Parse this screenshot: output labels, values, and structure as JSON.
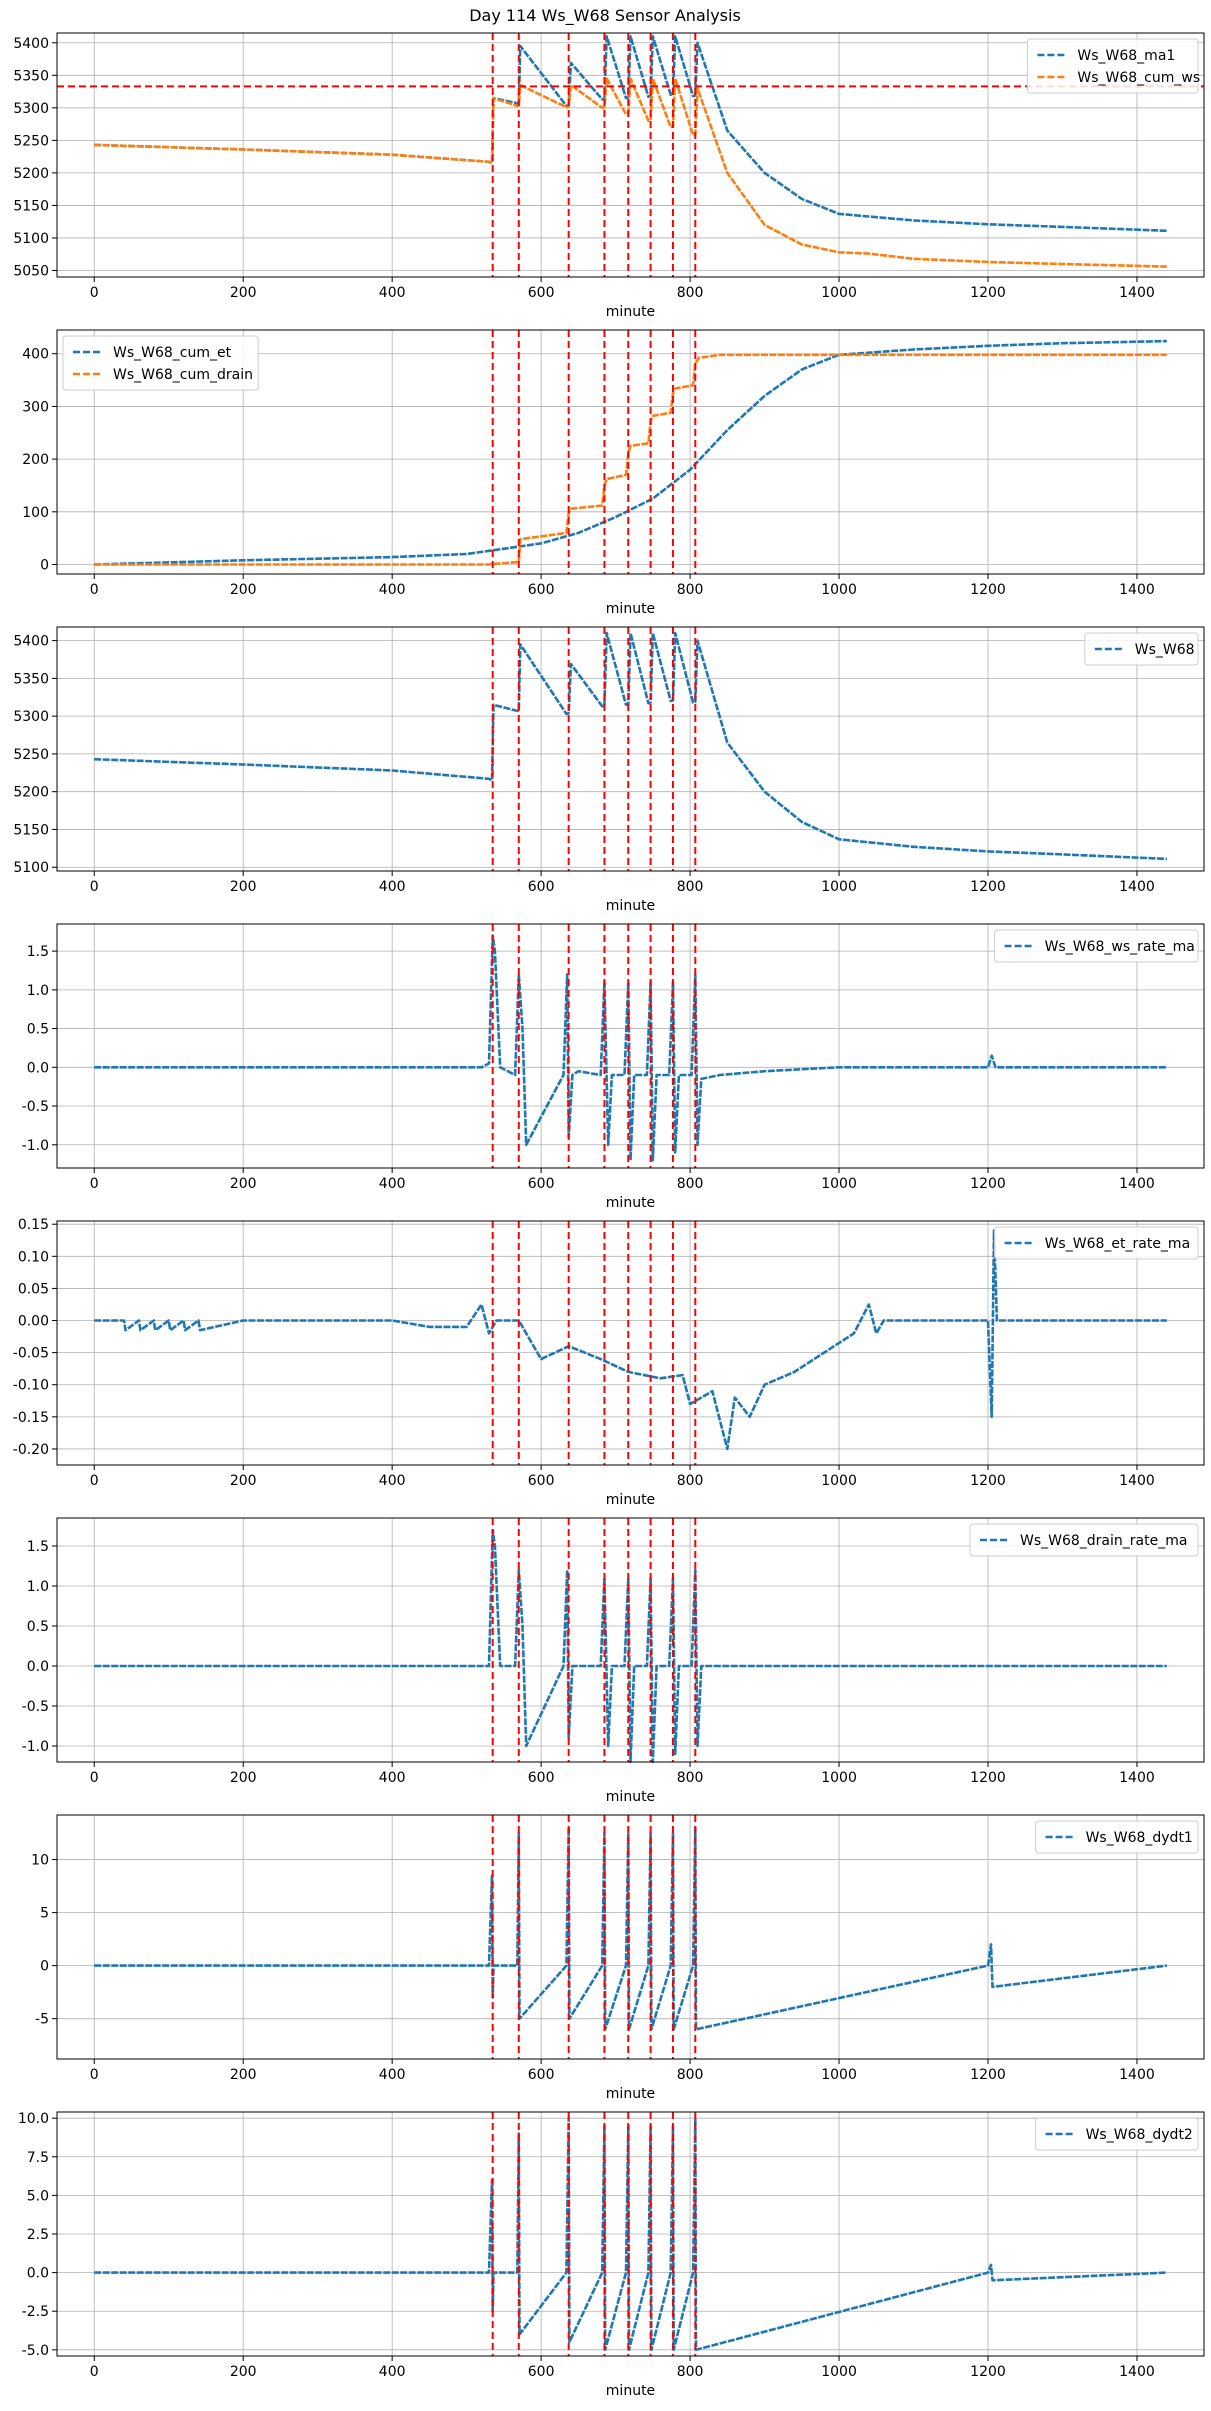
{
  "title": "Day 114 Ws_W68 Sensor Analysis",
  "colors": {
    "blue": "#1f77b4",
    "orange": "#ff7f0e",
    "event": "#ff0000",
    "grid": "#b0b0b0"
  },
  "chart_data": [
    {
      "type": "line",
      "xlabel": "minute",
      "xlim": [
        -50,
        1490
      ],
      "ylim": [
        5040,
        5415
      ],
      "xticks": [
        0,
        200,
        400,
        600,
        800,
        1000,
        1200,
        1400
      ],
      "yticks": [
        5050,
        5100,
        5150,
        5200,
        5250,
        5300,
        5350,
        5400
      ],
      "legend_loc": "upper right",
      "hlines": [
        {
          "y": 5333,
          "color": "event",
          "style": "dashed"
        }
      ],
      "event_lines": [
        535,
        570,
        637,
        685,
        717,
        747,
        777,
        807
      ],
      "series": [
        {
          "name": "Ws_W68_ma1",
          "color": "blue",
          "style": "dashed",
          "x": [
            0,
            200,
            400,
            530,
            534,
            536,
            568,
            570,
            572,
            634,
            637,
            640,
            682,
            685,
            688,
            714,
            717,
            720,
            744,
            747,
            750,
            774,
            777,
            780,
            804,
            807,
            810,
            850,
            900,
            950,
            1000,
            1040,
            1100,
            1200,
            1300,
            1440
          ],
          "y": [
            5243,
            5236,
            5228,
            5217,
            5215,
            5315,
            5307,
            5308,
            5395,
            5303,
            5304,
            5369,
            5313,
            5314,
            5410,
            5315,
            5316,
            5410,
            5317,
            5318,
            5410,
            5320,
            5321,
            5410,
            5318,
            5319,
            5400,
            5265,
            5200,
            5160,
            5137,
            5133,
            5127,
            5121,
            5117,
            5111
          ]
        },
        {
          "name": "Ws_W68_cum_ws",
          "color": "orange",
          "style": "dashed",
          "x": [
            0,
            200,
            400,
            530,
            534,
            536,
            568,
            570,
            572,
            634,
            637,
            640,
            682,
            685,
            688,
            714,
            717,
            720,
            744,
            747,
            750,
            774,
            777,
            780,
            804,
            807,
            810,
            850,
            900,
            950,
            1000,
            1040,
            1100,
            1200,
            1300,
            1440
          ],
          "y": [
            5243,
            5236,
            5228,
            5217,
            5215,
            5315,
            5303,
            5304,
            5335,
            5301,
            5302,
            5335,
            5300,
            5301,
            5345,
            5290,
            5291,
            5345,
            5280,
            5281,
            5345,
            5270,
            5271,
            5345,
            5258,
            5259,
            5330,
            5200,
            5120,
            5090,
            5078,
            5076,
            5068,
            5063,
            5060,
            5056
          ]
        }
      ]
    },
    {
      "type": "line",
      "xlabel": "minute",
      "xlim": [
        -50,
        1490
      ],
      "ylim": [
        -18,
        445
      ],
      "xticks": [
        0,
        200,
        400,
        600,
        800,
        1000,
        1200,
        1400
      ],
      "yticks": [
        0,
        100,
        200,
        300,
        400
      ],
      "legend_loc": "upper left",
      "hlines": [],
      "event_lines": [
        535,
        570,
        637,
        685,
        717,
        747,
        777,
        807
      ],
      "series": [
        {
          "name": "Ws_W68_cum_et",
          "color": "blue",
          "style": "dashed",
          "x": [
            0,
            100,
            200,
            300,
            400,
            500,
            540,
            600,
            650,
            700,
            750,
            800,
            850,
            900,
            950,
            1000,
            1100,
            1200,
            1300,
            1440
          ],
          "y": [
            0,
            4,
            8,
            11,
            14,
            20,
            28,
            40,
            60,
            90,
            125,
            180,
            255,
            320,
            370,
            398,
            408,
            415,
            420,
            424
          ]
        },
        {
          "name": "Ws_W68_cum_drain",
          "color": "orange",
          "style": "dashed",
          "x": [
            0,
            530,
            535,
            570,
            572,
            634,
            637,
            640,
            682,
            685,
            688,
            714,
            717,
            720,
            744,
            747,
            750,
            774,
            777,
            780,
            804,
            807,
            812,
            840,
            1440
          ],
          "y": [
            0,
            0,
            1,
            5,
            48,
            60,
            98,
            106,
            112,
            150,
            162,
            170,
            210,
            225,
            230,
            272,
            282,
            288,
            325,
            334,
            340,
            382,
            392,
            398,
            398
          ]
        }
      ]
    },
    {
      "type": "line",
      "xlabel": "minute",
      "xlim": [
        -50,
        1490
      ],
      "ylim": [
        5095,
        5418
      ],
      "xticks": [
        0,
        200,
        400,
        600,
        800,
        1000,
        1200,
        1400
      ],
      "yticks": [
        5100,
        5150,
        5200,
        5250,
        5300,
        5350,
        5400
      ],
      "legend_loc": "upper right",
      "hlines": [],
      "event_lines": [
        535,
        570,
        637,
        685,
        717,
        747,
        777,
        807
      ],
      "series": [
        {
          "name": "Ws_W68",
          "color": "blue",
          "style": "dashed",
          "x": [
            0,
            200,
            400,
            530,
            534,
            536,
            568,
            570,
            572,
            634,
            637,
            640,
            682,
            685,
            688,
            714,
            717,
            720,
            744,
            747,
            750,
            774,
            777,
            780,
            804,
            807,
            810,
            850,
            900,
            950,
            1000,
            1040,
            1100,
            1200,
            1300,
            1440
          ],
          "y": [
            5243,
            5236,
            5228,
            5217,
            5215,
            5315,
            5307,
            5308,
            5395,
            5303,
            5304,
            5369,
            5313,
            5314,
            5410,
            5315,
            5316,
            5410,
            5317,
            5318,
            5410,
            5320,
            5321,
            5410,
            5318,
            5319,
            5400,
            5265,
            5200,
            5160,
            5137,
            5133,
            5127,
            5121,
            5117,
            5111
          ]
        }
      ]
    },
    {
      "type": "line",
      "xlabel": "minute",
      "xlim": [
        -50,
        1490
      ],
      "ylim": [
        -1.3,
        1.85
      ],
      "xticks": [
        0,
        200,
        400,
        600,
        800,
        1000,
        1200,
        1400
      ],
      "yticks": [
        -1.0,
        -0.5,
        0.0,
        0.5,
        1.0,
        1.5
      ],
      "ytick_labels": [
        "-1.0",
        "-0.5",
        "0.0",
        "0.5",
        "1.0",
        "1.5"
      ],
      "legend_loc": "upper right",
      "hlines": [],
      "event_lines": [
        535,
        570,
        637,
        685,
        717,
        747,
        777,
        807
      ],
      "series": [
        {
          "name": "Ws_W68_ws_rate_ma",
          "color": "blue",
          "style": "dashed",
          "x": [
            0,
            520,
            530,
            535,
            538,
            545,
            565,
            570,
            575,
            580,
            630,
            635,
            637,
            642,
            650,
            680,
            685,
            690,
            695,
            712,
            717,
            720,
            725,
            742,
            747,
            750,
            755,
            772,
            777,
            780,
            785,
            802,
            807,
            810,
            815,
            840,
            900,
            1000,
            1200,
            1205,
            1210,
            1440
          ],
          "y": [
            0,
            0,
            0.05,
            1.7,
            1.5,
            0,
            -0.1,
            1.2,
            0.5,
            -1.0,
            -0.1,
            1.2,
            -0.9,
            -0.1,
            -0.05,
            -0.1,
            1.1,
            -1.0,
            -0.1,
            -0.1,
            1.1,
            -1.2,
            -0.1,
            -0.1,
            1.1,
            -1.2,
            -0.1,
            -0.1,
            1.1,
            -1.1,
            -0.1,
            -0.1,
            1.2,
            -1.0,
            -0.15,
            -0.1,
            -0.05,
            0,
            0,
            0.15,
            0,
            0
          ]
        }
      ]
    },
    {
      "type": "line",
      "xlabel": "minute",
      "xlim": [
        -50,
        1490
      ],
      "ylim": [
        -0.225,
        0.155
      ],
      "xticks": [
        0,
        200,
        400,
        600,
        800,
        1000,
        1200,
        1400
      ],
      "yticks": [
        -0.2,
        -0.15,
        -0.1,
        -0.05,
        0.0,
        0.05,
        0.1,
        0.15
      ],
      "ytick_labels": [
        "-0.20",
        "-0.15",
        "-0.10",
        "-0.05",
        "0.00",
        "0.05",
        "0.10",
        "0.15"
      ],
      "legend_loc": "upper right",
      "hlines": [],
      "event_lines": [
        535,
        570,
        637,
        685,
        717,
        747,
        777,
        807
      ],
      "series": [
        {
          "name": "Ws_W68_et_rate_ma",
          "color": "blue",
          "style": "dashed",
          "x": [
            0,
            40,
            42,
            60,
            62,
            80,
            82,
            100,
            102,
            120,
            122,
            140,
            142,
            200,
            400,
            450,
            500,
            520,
            530,
            540,
            570,
            600,
            637,
            680,
            717,
            760,
            790,
            800,
            830,
            850,
            860,
            880,
            900,
            940,
            980,
            1020,
            1040,
            1050,
            1060,
            1100,
            1200,
            1205,
            1208,
            1212,
            1440
          ],
          "y": [
            0,
            0,
            -0.015,
            0,
            -0.015,
            0,
            -0.015,
            0,
            -0.015,
            0,
            -0.015,
            0,
            -0.015,
            0,
            0,
            -0.01,
            -0.01,
            0.025,
            -0.02,
            0,
            0,
            -0.06,
            -0.04,
            -0.06,
            -0.08,
            -0.09,
            -0.085,
            -0.13,
            -0.11,
            -0.2,
            -0.12,
            -0.15,
            -0.1,
            -0.08,
            -0.05,
            -0.02,
            0.025,
            -0.02,
            0,
            0,
            0,
            -0.15,
            0.14,
            0,
            0
          ]
        }
      ]
    },
    {
      "type": "line",
      "xlabel": "minute",
      "xlim": [
        -50,
        1490
      ],
      "ylim": [
        -1.2,
        1.85
      ],
      "xticks": [
        0,
        200,
        400,
        600,
        800,
        1000,
        1200,
        1400
      ],
      "yticks": [
        -1.0,
        -0.5,
        0.0,
        0.5,
        1.0,
        1.5
      ],
      "ytick_labels": [
        "-1.0",
        "-0.5",
        "0.0",
        "0.5",
        "1.0",
        "1.5"
      ],
      "legend_loc": "upper right",
      "hlines": [],
      "event_lines": [
        535,
        570,
        637,
        685,
        717,
        747,
        777,
        807
      ],
      "series": [
        {
          "name": "Ws_W68_drain_rate_ma",
          "color": "blue",
          "style": "dashed",
          "x": [
            0,
            530,
            535,
            538,
            545,
            565,
            570,
            575,
            580,
            630,
            635,
            637,
            642,
            680,
            685,
            690,
            695,
            712,
            717,
            720,
            725,
            742,
            747,
            750,
            755,
            772,
            777,
            780,
            785,
            802,
            807,
            810,
            815,
            840,
            845,
            1440
          ],
          "y": [
            0,
            0,
            1.7,
            1.5,
            0,
            0,
            1.2,
            0.5,
            -1.0,
            0,
            1.2,
            -0.9,
            0,
            0,
            1.1,
            -1.0,
            0,
            0,
            1.1,
            -1.2,
            0,
            0,
            1.1,
            -1.2,
            0,
            0,
            1.1,
            -1.1,
            0,
            0,
            1.2,
            -1.0,
            0,
            0,
            0,
            0
          ]
        }
      ]
    },
    {
      "type": "line",
      "xlabel": "minute",
      "xlim": [
        -50,
        1490
      ],
      "ylim": [
        -8.8,
        14.2
      ],
      "xticks": [
        0,
        200,
        400,
        600,
        800,
        1000,
        1200,
        1400
      ],
      "yticks": [
        -5,
        0,
        5,
        10
      ],
      "legend_loc": "upper right",
      "hlines": [],
      "event_lines": [
        535,
        570,
        637,
        685,
        717,
        747,
        777,
        807
      ],
      "series": [
        {
          "name": "Ws_W68_dydt1",
          "color": "blue",
          "style": "dashed",
          "x": [
            0,
            530,
            534,
            535,
            536,
            568,
            570,
            571,
            634,
            637,
            638,
            682,
            685,
            686,
            714,
            717,
            718,
            744,
            747,
            748,
            774,
            777,
            778,
            804,
            807,
            808,
            1200,
            1204,
            1206,
            1440
          ],
          "y": [
            0,
            0,
            8.5,
            -3,
            0,
            0,
            12.5,
            -5,
            0,
            13,
            -5,
            0,
            12.5,
            -6,
            0,
            12.5,
            -6,
            0,
            12.5,
            -6,
            0,
            12.5,
            -6,
            0,
            13,
            -6,
            0,
            2,
            -2,
            0
          ]
        }
      ]
    },
    {
      "type": "line",
      "xlabel": "minute",
      "xlim": [
        -50,
        1490
      ],
      "ylim": [
        -5.4,
        10.4
      ],
      "xticks": [
        0,
        200,
        400,
        600,
        800,
        1000,
        1200,
        1400
      ],
      "yticks": [
        -5.0,
        -2.5,
        0.0,
        2.5,
        5.0,
        7.5,
        10.0
      ],
      "ytick_labels": [
        "-5.0",
        "-2.5",
        "0.0",
        "2.5",
        "5.0",
        "7.5",
        "10.0"
      ],
      "legend_loc": "upper right",
      "hlines": [],
      "event_lines": [
        535,
        570,
        637,
        685,
        717,
        747,
        777,
        807
      ],
      "series": [
        {
          "name": "Ws_W68_dydt2",
          "color": "blue",
          "style": "dashed",
          "x": [
            0,
            530,
            534,
            535,
            536,
            568,
            570,
            571,
            634,
            637,
            638,
            682,
            685,
            686,
            714,
            717,
            718,
            744,
            747,
            748,
            774,
            777,
            778,
            804,
            807,
            808,
            1200,
            1204,
            1206,
            1440
          ],
          "y": [
            0,
            0,
            6,
            -2.5,
            0,
            0,
            9,
            -4,
            0,
            10,
            -4.5,
            0,
            9.5,
            -5,
            0,
            9.5,
            -5,
            0,
            9.5,
            -5,
            0,
            9.5,
            -5,
            0,
            10,
            -5,
            0,
            0.5,
            -0.5,
            0
          ]
        }
      ]
    }
  ]
}
